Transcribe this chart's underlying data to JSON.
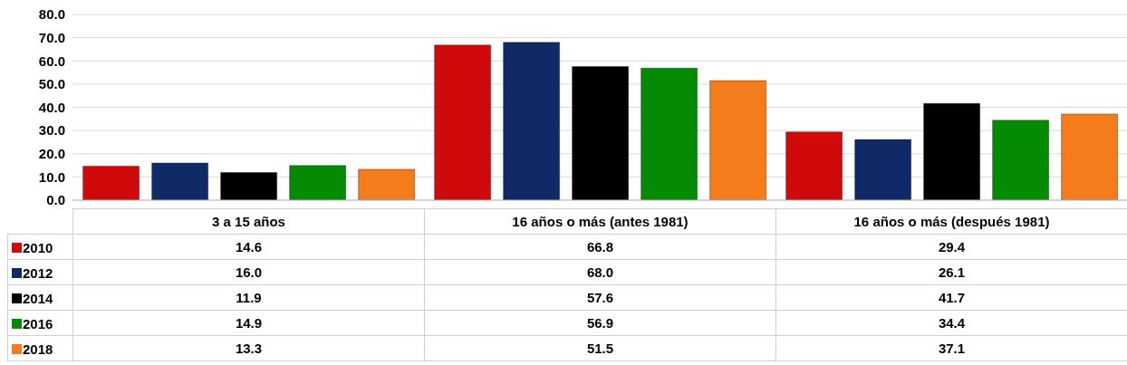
{
  "chart_data": {
    "type": "bar",
    "categories": [
      "3 a 15 años",
      "16 años o más (antes 1981)",
      "16 años o más (después 1981)"
    ],
    "series": [
      {
        "name": "2010",
        "color": "#d00a0a",
        "values": [
          14.6,
          66.8,
          29.4
        ],
        "value_labels": [
          "14.6",
          "66.8",
          "29.4"
        ]
      },
      {
        "name": "2012",
        "color": "#0f2a66",
        "values": [
          16.0,
          68.0,
          26.1
        ],
        "value_labels": [
          "16.0",
          "68.0",
          "26.1"
        ]
      },
      {
        "name": "2014",
        "color": "#000000",
        "values": [
          11.9,
          57.6,
          41.7
        ],
        "value_labels": [
          "11.9",
          "57.6",
          "41.7"
        ]
      },
      {
        "name": "2016",
        "color": "#048a04",
        "values": [
          14.9,
          56.9,
          34.4
        ],
        "value_labels": [
          "14.9",
          "56.9",
          "34.4"
        ]
      },
      {
        "name": "2018",
        "color": "#f47c1c",
        "values": [
          13.3,
          51.5,
          37.1
        ],
        "value_labels": [
          "13.3",
          "51.5",
          "37.1"
        ]
      }
    ],
    "ylim": [
      0,
      80
    ],
    "yticks": [
      {
        "value": 0,
        "label": "0.0"
      },
      {
        "value": 10,
        "label": "10.0"
      },
      {
        "value": 20,
        "label": "20.0"
      },
      {
        "value": 30,
        "label": "30.0"
      },
      {
        "value": 40,
        "label": "40.0"
      },
      {
        "value": 50,
        "label": "50.0"
      },
      {
        "value": 60,
        "label": "60.0"
      },
      {
        "value": 70,
        "label": "70.0"
      },
      {
        "value": 80,
        "label": "80.0"
      }
    ],
    "grid": "y",
    "legend": "bottom"
  }
}
